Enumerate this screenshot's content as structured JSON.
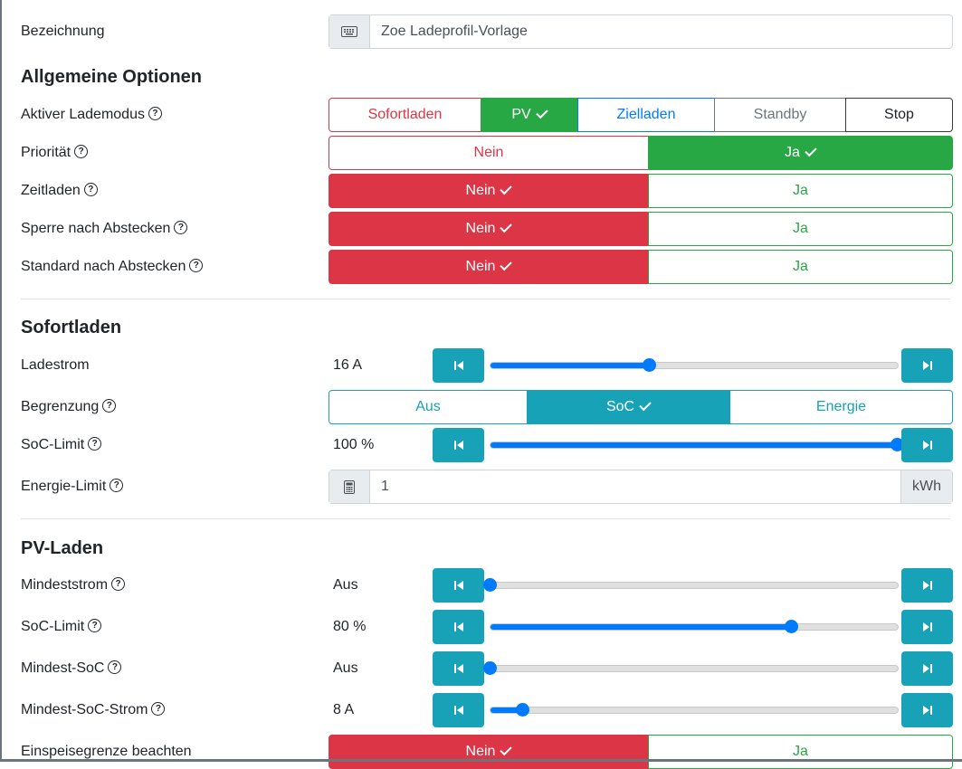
{
  "bezeichnung": {
    "label": "Bezeichnung",
    "value": "Zoe Ladeprofil-Vorlage",
    "icon": "keyboard-icon"
  },
  "allgemein": {
    "heading": "Allgemeine Optionen",
    "lademodus": {
      "label": "Aktiver Lademodus",
      "options": [
        "Sofortladen",
        "PV",
        "Zielladen",
        "Standby",
        "Stop"
      ],
      "selected": "PV"
    },
    "prioritaet": {
      "label": "Priorität",
      "no": "Nein",
      "yes": "Ja",
      "selected": "Ja"
    },
    "zeitladen": {
      "label": "Zeitladen",
      "no": "Nein",
      "yes": "Ja",
      "selected": "Nein"
    },
    "sperre": {
      "label": "Sperre nach Abstecken",
      "no": "Nein",
      "yes": "Ja",
      "selected": "Nein"
    },
    "standard": {
      "label": "Standard nach Abstecken",
      "no": "Nein",
      "yes": "Ja",
      "selected": "Nein"
    }
  },
  "sofortladen": {
    "heading": "Sofortladen",
    "ladestrom": {
      "label": "Ladestrom",
      "value": "16 A",
      "level": 0.39
    },
    "begrenzung": {
      "label": "Begrenzung",
      "options": [
        "Aus",
        "SoC",
        "Energie"
      ],
      "selected": "SoC"
    },
    "soc_limit": {
      "label": "SoC-Limit",
      "value": "100 %",
      "level": 1.0
    },
    "energie_limit": {
      "label": "Energie-Limit",
      "value": "1",
      "unit": "kWh",
      "icon": "calculator-icon"
    }
  },
  "pvladen": {
    "heading": "PV-Laden",
    "mindeststrom": {
      "label": "Mindeststrom",
      "value": "Aus",
      "level": 0.0
    },
    "soc_limit": {
      "label": "SoC-Limit",
      "value": "80 %",
      "level": 0.74
    },
    "mindest_soc": {
      "label": "Mindest-SoC",
      "value": "Aus",
      "level": 0.0
    },
    "mindest_soc_strom": {
      "label": "Mindest-SoC-Strom",
      "value": "8 A",
      "level": 0.08
    },
    "einspeisegrenze": {
      "label": "Einspeisegrenze beachten",
      "no": "Nein",
      "yes": "Ja",
      "selected": "Nein"
    }
  },
  "colors": {
    "green": "#28a745",
    "red": "#dc3545",
    "blue": "#007bff",
    "teal": "#17a2b8",
    "gray": "#6c757d",
    "dark": "#343a40"
  }
}
